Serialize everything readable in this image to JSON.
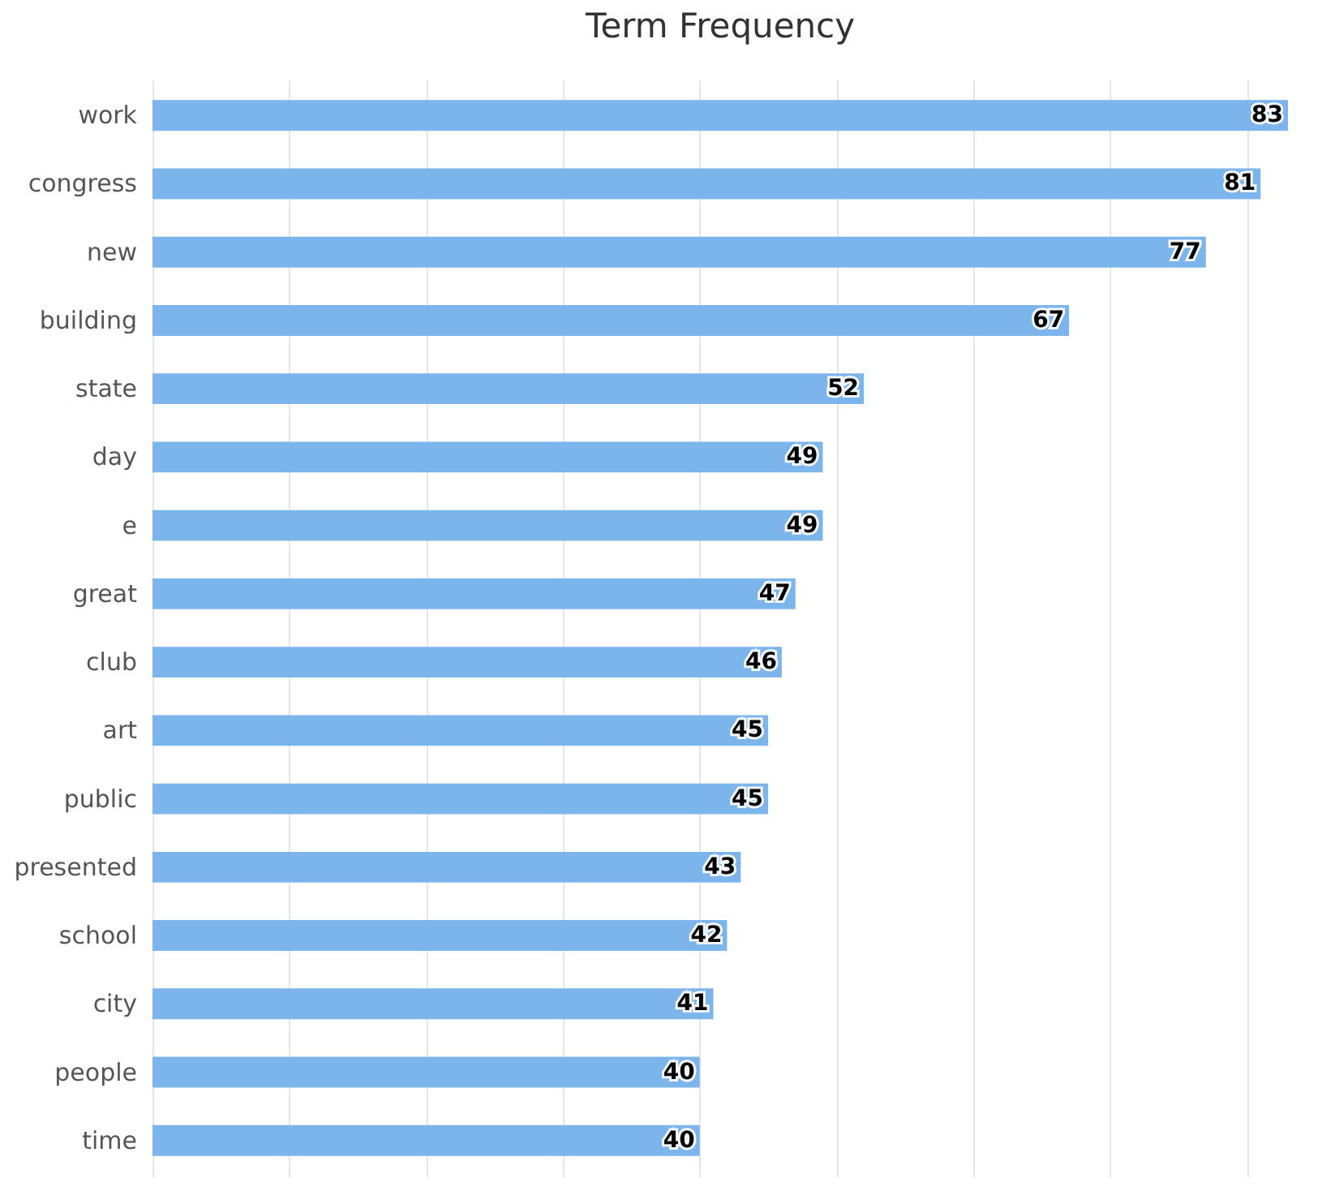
{
  "chart_data": {
    "type": "bar",
    "orientation": "horizontal",
    "title": "Term Frequency",
    "categories": [
      "work",
      "congress",
      "new",
      "building",
      "state",
      "day",
      "e",
      "great",
      "club",
      "art",
      "public",
      "presented",
      "school",
      "city",
      "people",
      "time"
    ],
    "values": [
      83,
      81,
      77,
      67,
      52,
      49,
      49,
      47,
      46,
      45,
      45,
      43,
      42,
      41,
      40,
      40
    ],
    "color": "#7cb5ec",
    "data_labels": true,
    "xlim": [
      0,
      83
    ],
    "xticks": [
      {
        "value": 0,
        "label": null
      },
      {
        "value": 10,
        "label": null
      },
      {
        "value": 20,
        "label": null
      },
      {
        "value": 30,
        "label": null
      },
      {
        "value": 40,
        "label": null
      },
      {
        "value": 50,
        "label": null
      },
      {
        "value": 60,
        "label": null
      },
      {
        "value": 70,
        "label": null
      },
      {
        "value": 80,
        "label": null
      }
    ],
    "grid": "x",
    "tick_labels": "y"
  }
}
